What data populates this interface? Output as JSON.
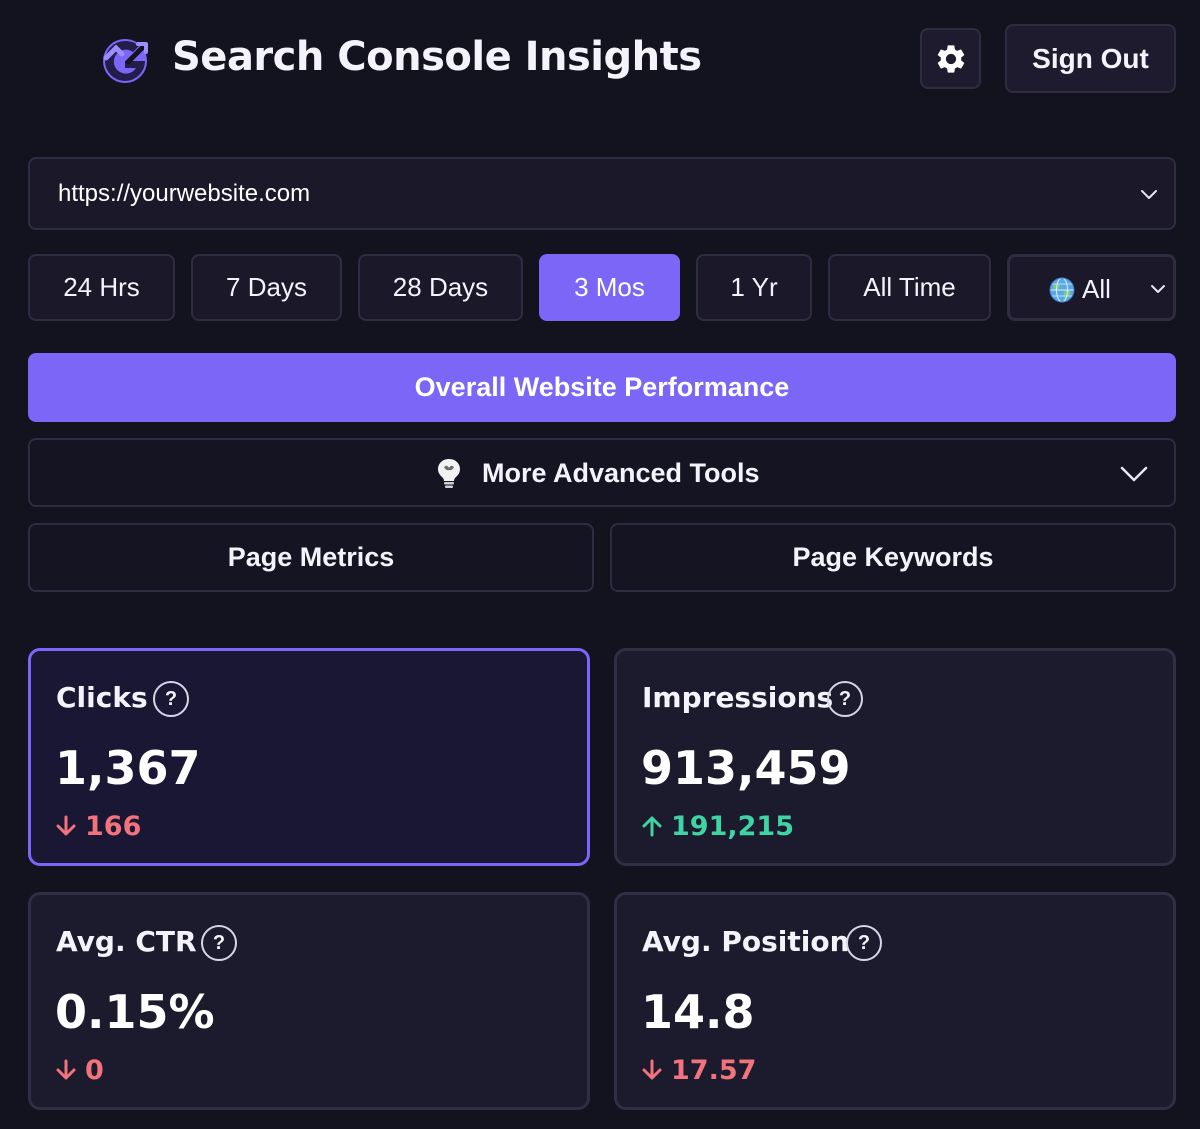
{
  "app": {
    "title": "Search Console Insights",
    "sign_out": "Sign Out",
    "settings_icon": "gear-icon",
    "logo_icon": "g-logo-icon"
  },
  "site": {
    "url": "https://yourwebsite.com"
  },
  "ranges": [
    {
      "label": "24 Hrs",
      "active": false
    },
    {
      "label": "7 Days",
      "active": false
    },
    {
      "label": "28 Days",
      "active": false
    },
    {
      "label": "3 Mos",
      "active": true
    },
    {
      "label": "1 Yr",
      "active": false
    },
    {
      "label": "All Time",
      "active": false
    }
  ],
  "country": {
    "label": "All",
    "icon": "globe-icon"
  },
  "actions": {
    "overall": "Overall Website Performance",
    "advanced_tools": "More Advanced Tools",
    "advanced_icon": "lightbulb-icon",
    "page_metrics": "Page Metrics",
    "page_keywords": "Page Keywords"
  },
  "metrics": [
    {
      "label": "Clicks",
      "value": "1,367",
      "delta": "166",
      "direction": "down",
      "selected": true
    },
    {
      "label": "Impressions",
      "value": "913,459",
      "delta": "191,215",
      "direction": "up",
      "selected": false
    },
    {
      "label": "Avg. CTR",
      "value": "0.15%",
      "delta": "0",
      "direction": "down",
      "selected": false
    },
    {
      "label": "Avg. Position",
      "value": "14.8",
      "delta": "17.57",
      "direction": "down",
      "selected": false
    }
  ],
  "colors": {
    "background": "#13121f",
    "accent": "#7b66f7",
    "positive": "#3fd4a4",
    "negative": "#f2737c"
  }
}
